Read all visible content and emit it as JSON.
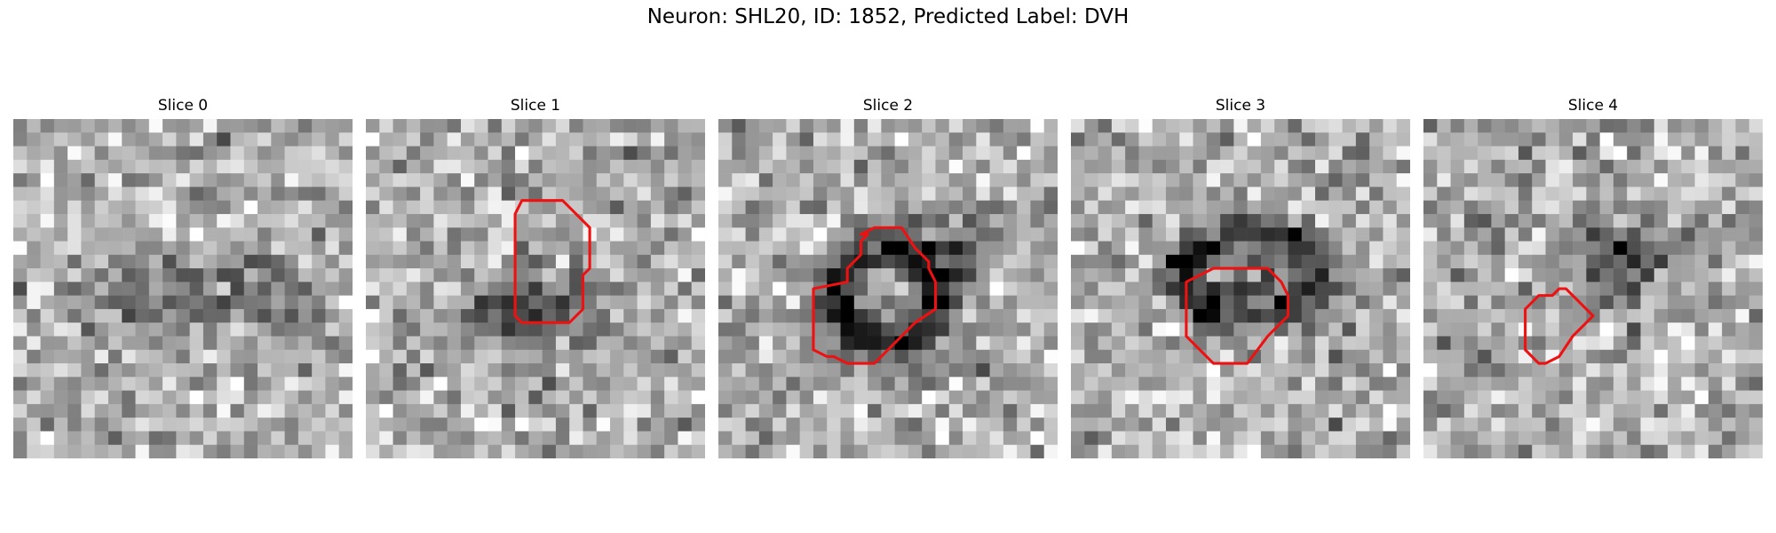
{
  "figure": {
    "title": "Neuron: SHL20, ID: 1852, Predicted Label: DVH"
  },
  "colors": {
    "contour": "#ee1111"
  },
  "panels": [
    {
      "title": "Slice 0",
      "seed": 11,
      "blobs": [
        {
          "cx": 12.0,
          "cy": 12.5,
          "sx": 6.0,
          "sy": 2.5,
          "a": 70
        },
        {
          "cx": 20.0,
          "cy": 14.0,
          "sx": 3.0,
          "sy": 3.0,
          "a": 40
        }
      ],
      "contour": []
    },
    {
      "title": "Slice 1",
      "seed": 23,
      "blobs": [
        {
          "cx": 12.5,
          "cy": 14.0,
          "sx": 4.5,
          "sy": 2.6,
          "a": 120
        }
      ],
      "contour": [
        [
          11.5,
          6
        ],
        [
          14.5,
          6
        ],
        [
          16.5,
          8
        ],
        [
          16.5,
          11
        ],
        [
          16,
          11.5
        ],
        [
          16,
          14
        ],
        [
          15,
          15
        ],
        [
          11.5,
          15
        ],
        [
          11,
          14.5
        ],
        [
          11,
          7
        ]
      ]
    },
    {
      "title": "Slice 2",
      "seed": 37,
      "blobs": [
        {
          "cx": 12.5,
          "cy": 13.0,
          "sx": 4.5,
          "sy": 4.2,
          "a": 130,
          "ring": true
        },
        {
          "cx": 17.5,
          "cy": 9.0,
          "sx": 2.5,
          "sy": 2.5,
          "a": 70
        }
      ],
      "contour": [
        [
          10.5,
          8.5
        ],
        [
          11,
          8.5
        ],
        [
          10.5,
          9
        ],
        [
          10.5,
          10
        ],
        [
          9.5,
          11
        ],
        [
          9.5,
          12
        ],
        [
          7,
          12.5
        ],
        [
          7,
          17
        ],
        [
          8,
          17.5
        ],
        [
          8.5,
          17.5
        ],
        [
          9.5,
          18
        ],
        [
          11.5,
          18
        ],
        [
          14.5,
          15
        ],
        [
          16,
          14
        ],
        [
          16,
          12
        ],
        [
          15.5,
          11
        ],
        [
          15.5,
          10.5
        ],
        [
          14.5,
          9.5
        ],
        [
          13.5,
          8
        ],
        [
          11.5,
          8
        ]
      ]
    },
    {
      "title": "Slice 3",
      "seed": 41,
      "blobs": [
        {
          "cx": 13.0,
          "cy": 11.5,
          "sx": 5.5,
          "sy": 3.5,
          "a": 125,
          "ring": true
        }
      ],
      "contour": [
        [
          8.5,
          12
        ],
        [
          9.5,
          11.5
        ],
        [
          10.5,
          11
        ],
        [
          11,
          11
        ],
        [
          12,
          11
        ],
        [
          14.5,
          11
        ],
        [
          15.5,
          12
        ],
        [
          16,
          13
        ],
        [
          16,
          14.5
        ],
        [
          15.5,
          15
        ],
        [
          14.5,
          16
        ],
        [
          13,
          18
        ],
        [
          10.5,
          18
        ],
        [
          8.5,
          16
        ]
      ]
    },
    {
      "title": "Slice 4",
      "seed": 53,
      "blobs": [
        {
          "cx": 15.0,
          "cy": 10.0,
          "sx": 4.0,
          "sy": 2.5,
          "a": 110
        }
      ],
      "contour": [
        [
          8,
          13.5
        ],
        [
          8.5,
          13
        ],
        [
          9.5,
          13
        ],
        [
          10,
          12.5
        ],
        [
          10.5,
          12.5
        ],
        [
          12.5,
          14.5
        ],
        [
          12,
          15
        ],
        [
          11,
          16
        ],
        [
          10,
          17.5
        ],
        [
          9,
          18
        ],
        [
          8.5,
          18
        ],
        [
          7.5,
          17
        ],
        [
          7.5,
          14
        ]
      ]
    }
  ]
}
